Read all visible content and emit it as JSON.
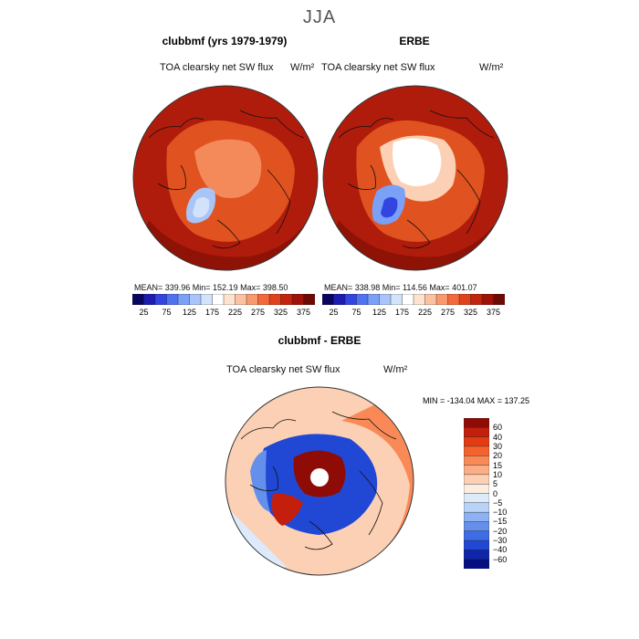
{
  "figure": {
    "season_title": "JJA"
  },
  "chart_data": [
    {
      "type": "heatmap",
      "projection": "north-polar-stereographic",
      "panel_title": "clubbmf (yrs 1979-1979)",
      "variable_label": "TOA clearsky net SW flux",
      "units": "W/m²",
      "stats": {
        "mean": "339.96",
        "min": "152.19",
        "max": "398.50"
      },
      "stats_text": "MEAN= 339.96   Min= 152.19   Max= 398.50",
      "colorbar": {
        "levels": [
          25,
          50,
          75,
          100,
          125,
          150,
          175,
          200,
          225,
          250,
          275,
          300,
          325,
          350,
          375
        ],
        "tick_labels": [
          "25",
          "75",
          "125",
          "175",
          "225",
          "275",
          "325",
          "375"
        ],
        "colors": [
          "#08065e",
          "#1c1cb0",
          "#3245e0",
          "#4f73ef",
          "#7aa0f7",
          "#a8c4fa",
          "#d4e3fc",
          "#ffffff",
          "#fde3d0",
          "#fbc2a2",
          "#f89a6e",
          "#f26a3b",
          "#e0421c",
          "#c22410",
          "#9e1208",
          "#6d0a04"
        ]
      },
      "fields": {
        "background_value": 360,
        "arctic_value": 300,
        "greenland_value": 175
      }
    },
    {
      "type": "heatmap",
      "projection": "north-polar-stereographic",
      "panel_title": "ERBE",
      "variable_label": "TOA clearsky net SW flux",
      "units": "W/m²",
      "stats": {
        "mean": "338.98",
        "min": "114.56",
        "max": "401.07"
      },
      "stats_text": "MEAN= 338.98   Min= 114.56   Max= 401.07",
      "colorbar": {
        "levels": [
          25,
          50,
          75,
          100,
          125,
          150,
          175,
          200,
          225,
          250,
          275,
          300,
          325,
          350,
          375
        ],
        "tick_labels": [
          "25",
          "75",
          "125",
          "175",
          "225",
          "275",
          "325",
          "375"
        ],
        "colors": [
          "#08065e",
          "#1c1cb0",
          "#3245e0",
          "#4f73ef",
          "#7aa0f7",
          "#a8c4fa",
          "#d4e3fc",
          "#ffffff",
          "#fde3d0",
          "#fbc2a2",
          "#f89a6e",
          "#f26a3b",
          "#e0421c",
          "#c22410",
          "#9e1208",
          "#6d0a04"
        ]
      },
      "fields": {
        "background_value": 360,
        "arctic_value": 210,
        "greenland_value": 150,
        "missing_pole": true
      }
    },
    {
      "type": "heatmap",
      "projection": "north-polar-stereographic",
      "panel_title": "clubbmf - ERBE",
      "variable_label": "TOA clearsky net SW flux",
      "units": "W/m²",
      "min_max_text": "MIN = -134.04  MAX = 137.25",
      "colorbar": {
        "levels": [
          60,
          40,
          30,
          20,
          15,
          10,
          5,
          0,
          -5,
          -10,
          -15,
          -20,
          -30,
          -40,
          -60
        ],
        "tick_labels": [
          "60",
          "40",
          "30",
          "20",
          "15",
          "10",
          "5",
          "0",
          "−5",
          "−10",
          "−15",
          "−20",
          "−30",
          "−40",
          "−60"
        ],
        "colors": [
          "#8f0c06",
          "#c41f0c",
          "#e23c15",
          "#f4632e",
          "#f98a58",
          "#fbae86",
          "#fcd0b4",
          "#fdece0",
          "#ddeafb",
          "#b8d2f8",
          "#8cb2f3",
          "#6490ec",
          "#3e6ce4",
          "#2148d4",
          "#1026aa",
          "#050f80"
        ]
      },
      "fields": {
        "background_value": 3
      }
    }
  ]
}
